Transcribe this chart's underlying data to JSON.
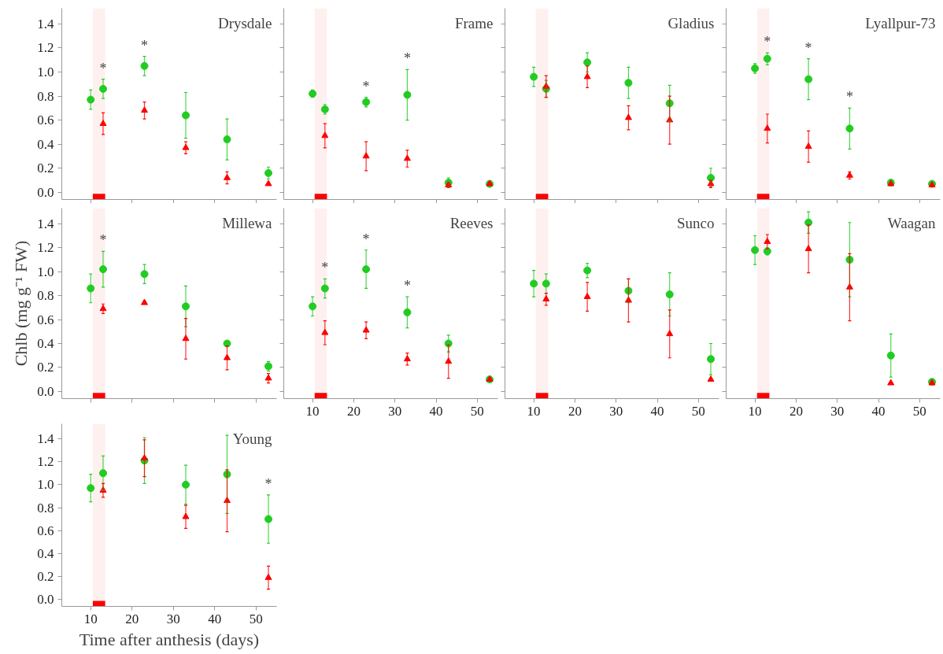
{
  "chart_data": [
    {
      "type": "scatter",
      "title": "Drysdale",
      "xlim": [
        3,
        55
      ],
      "ylim": [
        -0.06,
        1.53
      ],
      "xticks": [
        10,
        20,
        30,
        40,
        50
      ],
      "yticks": [
        {
          "value": 0,
          "label": "0.0"
        },
        {
          "value": 0.2,
          "label": "0.2"
        },
        {
          "value": 0.4,
          "label": "0.4"
        },
        {
          "value": 0.6,
          "label": "0.6"
        },
        {
          "value": 0.8,
          "label": "0.8"
        },
        {
          "value": 1,
          "label": "1.0"
        },
        {
          "value": 1.2,
          "label": "1.2"
        },
        {
          "value": 1.4,
          "label": "1.4"
        }
      ],
      "tick_labels": "y",
      "grid": false,
      "series": [
        {
          "color": "#22cc22",
          "marker": "circle",
          "x": [
            10,
            13,
            23,
            33,
            43,
            53
          ],
          "values": [
            0.77,
            0.86,
            1.05,
            0.64,
            0.44,
            0.16
          ],
          "errors": [
            0.08,
            0.08,
            0.08,
            0.19,
            0.17,
            0.05
          ]
        },
        {
          "color": "#ff0000",
          "marker": "triangle",
          "x": [
            13,
            23,
            33,
            43,
            53
          ],
          "values": [
            0.57,
            0.68,
            0.37,
            0.12,
            0.07
          ],
          "errors": [
            0.09,
            0.07,
            0.05,
            0.05,
            null
          ]
        }
      ],
      "bands": [
        {
          "axis": "x",
          "from": 10.5,
          "to": 13.5,
          "color": "#ff0000"
        }
      ],
      "annotations": [
        {
          "text": "*",
          "x": 13,
          "y": 0.86
        },
        {
          "text": "*",
          "x": 23,
          "y": 1.05
        }
      ]
    },
    {
      "type": "scatter",
      "title": "Frame",
      "xlim": [
        3,
        55
      ],
      "ylim": [
        -0.06,
        1.53
      ],
      "xticks": [
        10,
        20,
        30,
        40,
        50
      ],
      "yticks": [
        0,
        0.2,
        0.4,
        0.6,
        0.8,
        1,
        1.2,
        1.4
      ],
      "tick_labels": false,
      "grid": false,
      "series": [
        {
          "color": "#22cc22",
          "marker": "circle",
          "x": [
            10,
            13,
            23,
            33,
            43,
            53
          ],
          "values": [
            0.82,
            0.69,
            0.75,
            0.81,
            0.08,
            0.07
          ],
          "errors": [
            0.03,
            0.04,
            0.04,
            0.21,
            0.04,
            null
          ]
        },
        {
          "color": "#ff0000",
          "marker": "triangle",
          "x": [
            13,
            23,
            33,
            43,
            53
          ],
          "values": [
            0.47,
            0.3,
            0.28,
            0.06,
            0.07
          ],
          "errors": [
            0.1,
            0.12,
            0.07,
            0.02,
            null
          ]
        }
      ],
      "bands": [
        {
          "axis": "x",
          "from": 10.5,
          "to": 13.5,
          "color": "#ff0000"
        }
      ],
      "annotations": [
        {
          "text": "*",
          "x": 23,
          "y": 0.75
        },
        {
          "text": "*",
          "x": 33,
          "y": 0.81
        }
      ]
    },
    {
      "type": "scatter",
      "title": "Gladius",
      "xlim": [
        3,
        55
      ],
      "ylim": [
        -0.06,
        1.53
      ],
      "xticks": [
        10,
        20,
        30,
        40,
        50
      ],
      "yticks": [
        0,
        0.2,
        0.4,
        0.6,
        0.8,
        1,
        1.2,
        1.4
      ],
      "tick_labels": false,
      "grid": false,
      "series": [
        {
          "color": "#22cc22",
          "marker": "circle",
          "x": [
            10,
            13,
            23,
            33,
            43,
            53
          ],
          "values": [
            0.96,
            0.86,
            1.08,
            0.91,
            0.74,
            0.12
          ],
          "errors": [
            0.08,
            0.07,
            0.08,
            0.13,
            0.15,
            0.08
          ]
        },
        {
          "color": "#ff0000",
          "marker": "triangle",
          "x": [
            13,
            23,
            33,
            43,
            53
          ],
          "values": [
            0.88,
            0.96,
            0.62,
            0.6,
            0.07
          ],
          "errors": [
            0.09,
            0.09,
            0.1,
            0.2,
            0.03
          ]
        }
      ],
      "bands": [
        {
          "axis": "x",
          "from": 10.5,
          "to": 13.5,
          "color": "#ff0000"
        }
      ]
    },
    {
      "type": "scatter",
      "title": "Lyallpur-73",
      "xlim": [
        3,
        55
      ],
      "ylim": [
        -0.06,
        1.53
      ],
      "xticks": [
        10,
        20,
        30,
        40,
        50
      ],
      "yticks": [
        0,
        0.2,
        0.4,
        0.6,
        0.8,
        1,
        1.2,
        1.4
      ],
      "tick_labels": false,
      "grid": false,
      "series": [
        {
          "color": "#22cc22",
          "marker": "circle",
          "x": [
            10,
            13,
            23,
            33,
            43,
            53
          ],
          "values": [
            1.03,
            1.11,
            0.94,
            0.53,
            0.08,
            0.07
          ],
          "errors": [
            0.04,
            0.05,
            0.17,
            0.17,
            null,
            null
          ]
        },
        {
          "color": "#ff0000",
          "marker": "triangle",
          "x": [
            13,
            23,
            33,
            43,
            53
          ],
          "values": [
            0.53,
            0.38,
            0.14,
            0.07,
            0.06
          ],
          "errors": [
            0.12,
            0.13,
            0.03,
            null,
            null
          ]
        }
      ],
      "bands": [
        {
          "axis": "x",
          "from": 10.5,
          "to": 13.5,
          "color": "#ff0000"
        }
      ],
      "annotations": [
        {
          "text": "*",
          "x": 13,
          "y": 1.11
        },
        {
          "text": "*",
          "x": 23,
          "y": 0.94
        },
        {
          "text": "*",
          "x": 33,
          "y": 0.53
        }
      ]
    },
    {
      "type": "scatter",
      "title": "Millewa",
      "ylabel": "Chlb (mg g⁻¹ FW)",
      "xlim": [
        3,
        55
      ],
      "ylim": [
        -0.06,
        1.53
      ],
      "xticks": [
        10,
        20,
        30,
        40,
        50
      ],
      "yticks": [
        {
          "value": 0,
          "label": "0.0"
        },
        {
          "value": 0.2,
          "label": "0.2"
        },
        {
          "value": 0.4,
          "label": "0.4"
        },
        {
          "value": 0.6,
          "label": "0.6"
        },
        {
          "value": 0.8,
          "label": "0.8"
        },
        {
          "value": 1,
          "label": "1.0"
        },
        {
          "value": 1.2,
          "label": "1.2"
        },
        {
          "value": 1.4,
          "label": "1.4"
        }
      ],
      "tick_labels": "y",
      "grid": false,
      "series": [
        {
          "color": "#22cc22",
          "marker": "circle",
          "x": [
            10,
            13,
            23,
            33,
            43,
            53
          ],
          "values": [
            0.86,
            1.02,
            0.98,
            0.71,
            0.4,
            0.21
          ],
          "errors": [
            0.12,
            0.15,
            0.08,
            0.17,
            0.02,
            0.04
          ]
        },
        {
          "color": "#ff0000",
          "marker": "triangle",
          "x": [
            13,
            23,
            33,
            43,
            53
          ],
          "values": [
            0.69,
            0.74,
            0.44,
            0.28,
            0.11
          ],
          "errors": [
            0.04,
            0.01,
            0.17,
            0.1,
            0.04
          ]
        }
      ],
      "bands": [
        {
          "axis": "x",
          "from": 10.5,
          "to": 13.5,
          "color": "#ff0000"
        }
      ],
      "annotations": [
        {
          "text": "*",
          "x": 13,
          "y": 1.02
        }
      ]
    },
    {
      "type": "scatter",
      "title": "Reeves",
      "xlim": [
        3,
        55
      ],
      "ylim": [
        -0.06,
        1.53
      ],
      "xticks": [
        10,
        20,
        30,
        40,
        50
      ],
      "yticks": [
        0,
        0.2,
        0.4,
        0.6,
        0.8,
        1,
        1.2,
        1.4
      ],
      "tick_labels": "x",
      "grid": false,
      "series": [
        {
          "color": "#22cc22",
          "marker": "circle",
          "x": [
            10,
            13,
            23,
            33,
            43,
            53
          ],
          "values": [
            0.71,
            0.86,
            1.02,
            0.66,
            0.4,
            0.1
          ],
          "errors": [
            0.08,
            0.08,
            0.16,
            0.13,
            0.07,
            null
          ]
        },
        {
          "color": "#ff0000",
          "marker": "triangle",
          "x": [
            13,
            23,
            33,
            43,
            53
          ],
          "values": [
            0.49,
            0.51,
            0.27,
            0.25,
            0.1
          ],
          "errors": [
            0.1,
            0.07,
            0.05,
            0.14,
            null
          ]
        }
      ],
      "bands": [
        {
          "axis": "x",
          "from": 10.5,
          "to": 13.5,
          "color": "#ff0000"
        }
      ],
      "annotations": [
        {
          "text": "*",
          "x": 13,
          "y": 0.86
        },
        {
          "text": "*",
          "x": 23,
          "y": 1.02
        },
        {
          "text": "*",
          "x": 33,
          "y": 0.66
        }
      ]
    },
    {
      "type": "scatter",
      "title": "Sunco",
      "xlim": [
        3,
        55
      ],
      "ylim": [
        -0.06,
        1.53
      ],
      "xticks": [
        10,
        20,
        30,
        40,
        50
      ],
      "yticks": [
        0,
        0.2,
        0.4,
        0.6,
        0.8,
        1,
        1.2,
        1.4
      ],
      "tick_labels": "x",
      "grid": false,
      "series": [
        {
          "color": "#22cc22",
          "marker": "circle",
          "x": [
            10,
            13,
            23,
            33,
            43,
            53
          ],
          "values": [
            0.9,
            0.9,
            1.01,
            0.84,
            0.81,
            0.27
          ],
          "errors": [
            0.11,
            0.08,
            0.06,
            0.1,
            0.18,
            0.13
          ]
        },
        {
          "color": "#ff0000",
          "marker": "triangle",
          "x": [
            13,
            23,
            33,
            43,
            53
          ],
          "values": [
            0.77,
            0.79,
            0.76,
            0.48,
            0.1
          ],
          "errors": [
            0.05,
            0.12,
            0.18,
            0.2,
            null
          ]
        }
      ],
      "bands": [
        {
          "axis": "x",
          "from": 10.5,
          "to": 13.5,
          "color": "#ff0000"
        }
      ]
    },
    {
      "type": "scatter",
      "title": "Waagan",
      "xlim": [
        3,
        55
      ],
      "ylim": [
        -0.06,
        1.53
      ],
      "xticks": [
        10,
        20,
        30,
        40,
        50
      ],
      "yticks": [
        0,
        0.2,
        0.4,
        0.6,
        0.8,
        1,
        1.2,
        1.4
      ],
      "tick_labels": "x",
      "grid": false,
      "series": [
        {
          "color": "#22cc22",
          "marker": "circle",
          "x": [
            10,
            13,
            23,
            33,
            43,
            53
          ],
          "values": [
            1.18,
            1.17,
            1.41,
            1.1,
            0.3,
            0.08
          ],
          "errors": [
            0.12,
            0.03,
            0.09,
            0.31,
            0.18,
            null
          ]
        },
        {
          "color": "#ff0000",
          "marker": "triangle",
          "x": [
            13,
            23,
            33,
            43,
            53
          ],
          "values": [
            1.25,
            1.19,
            0.87,
            0.07,
            0.07
          ],
          "errors": [
            0.06,
            0.2,
            0.28,
            null,
            null
          ]
        }
      ],
      "bands": [
        {
          "axis": "x",
          "from": 10.5,
          "to": 13.5,
          "color": "#ff0000"
        }
      ]
    },
    {
      "type": "scatter",
      "title": "Young",
      "xlabel": "Time after anthesis (days)",
      "xlim": [
        3,
        55
      ],
      "ylim": [
        -0.06,
        1.53
      ],
      "xticks": [
        10,
        20,
        30,
        40,
        50
      ],
      "yticks": [
        {
          "value": 0,
          "label": "0.0"
        },
        {
          "value": 0.2,
          "label": "0.2"
        },
        {
          "value": 0.4,
          "label": "0.4"
        },
        {
          "value": 0.6,
          "label": "0.6"
        },
        {
          "value": 0.8,
          "label": "0.8"
        },
        {
          "value": 1,
          "label": "1.0"
        },
        {
          "value": 1.2,
          "label": "1.2"
        },
        {
          "value": 1.4,
          "label": "1.4"
        }
      ],
      "grid": false,
      "series": [
        {
          "color": "#22cc22",
          "marker": "circle",
          "x": [
            10,
            13,
            23,
            33,
            43,
            53
          ],
          "values": [
            0.97,
            1.1,
            1.21,
            1.0,
            1.09,
            0.7
          ],
          "errors": [
            0.12,
            0.15,
            0.2,
            0.17,
            0.34,
            0.21
          ]
        },
        {
          "color": "#ff0000",
          "marker": "triangle",
          "x": [
            13,
            23,
            33,
            43,
            53
          ],
          "values": [
            0.95,
            1.23,
            0.72,
            0.86,
            0.19
          ],
          "errors": [
            0.06,
            0.16,
            0.1,
            0.27,
            0.1
          ]
        }
      ],
      "bands": [
        {
          "axis": "x",
          "from": 10.5,
          "to": 13.5,
          "color": "#ff0000"
        }
      ],
      "annotations": [
        {
          "text": "*",
          "x": 53,
          "y": 0.7
        }
      ]
    }
  ]
}
